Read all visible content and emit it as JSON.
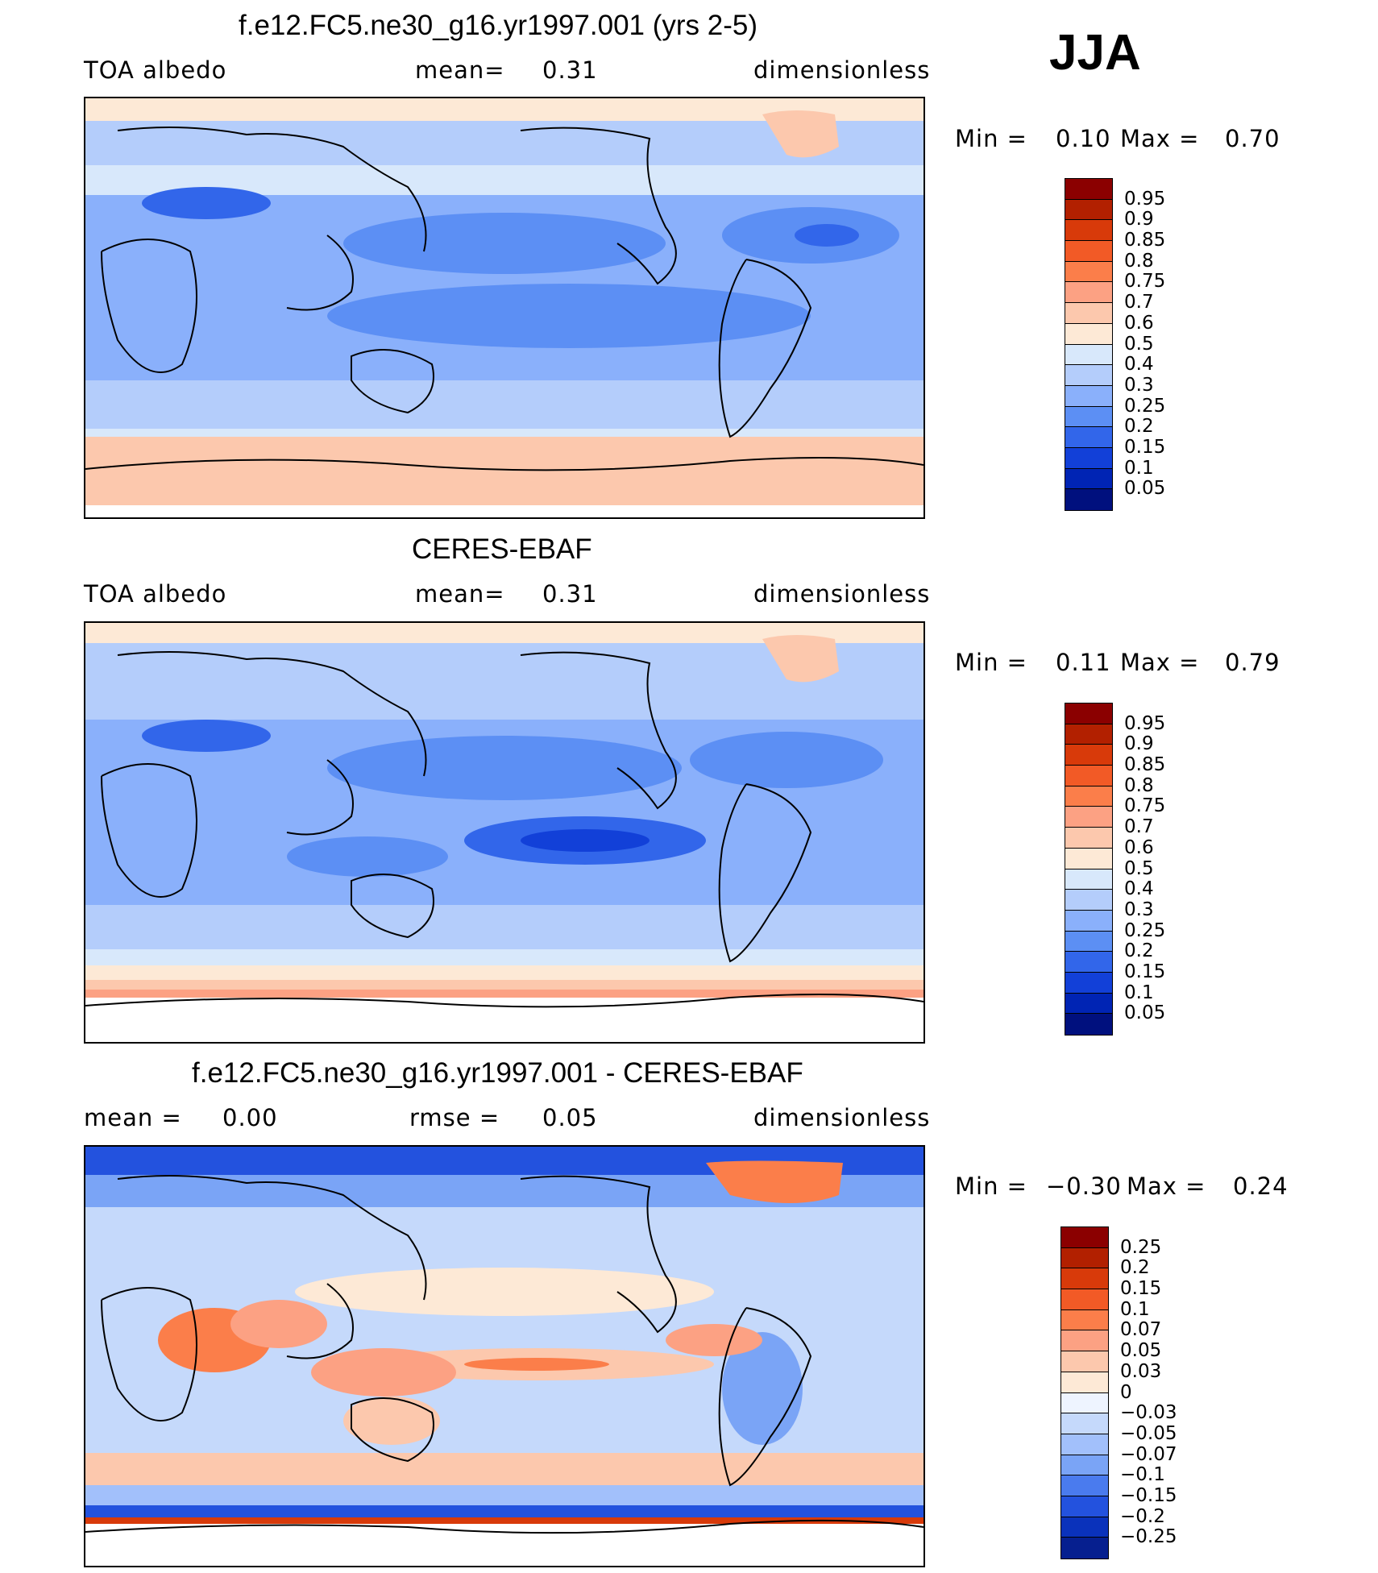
{
  "season": "JJA",
  "panels": [
    {
      "title": "f.e12.FC5.ne30_g16.yr1997.001 (yrs 2-5)",
      "left": "TOA albedo",
      "center_label": "mean=",
      "center_value": "0.31",
      "right": "dimensionless",
      "min_label": "Min =",
      "min_value": "0.10",
      "max_label": "Max =",
      "max_value": "0.70",
      "scale": "abs",
      "colorbar_labels": [
        "0.95",
        "0.9",
        "0.85",
        "0.8",
        "0.75",
        "0.7",
        "0.6",
        "0.5",
        "0.4",
        "0.3",
        "0.25",
        "0.2",
        "0.15",
        "0.1",
        "0.05"
      ]
    },
    {
      "title": "CERES-EBAF",
      "left": "TOA albedo",
      "center_label": "mean=",
      "center_value": "0.31",
      "right": "dimensionless",
      "min_label": "Min =",
      "min_value": "0.11",
      "max_label": "Max =",
      "max_value": "0.79",
      "scale": "abs",
      "colorbar_labels": [
        "0.95",
        "0.9",
        "0.85",
        "0.8",
        "0.75",
        "0.7",
        "0.6",
        "0.5",
        "0.4",
        "0.3",
        "0.25",
        "0.2",
        "0.15",
        "0.1",
        "0.05"
      ]
    },
    {
      "title": "f.e12.FC5.ne30_g16.yr1997.001 - CERES-EBAF",
      "left": "mean =",
      "left_value": "0.00",
      "center_label": "rmse =",
      "center_value": "0.05",
      "right": "dimensionless",
      "min_label": "Min =",
      "min_value": "−0.30",
      "max_label": "Max =",
      "max_value": "0.24",
      "scale": "diff",
      "colorbar_labels": [
        "0.25",
        "0.2",
        "0.15",
        "0.1",
        "0.07",
        "0.05",
        "0.03",
        "0",
        "−0.03",
        "−0.05",
        "−0.07",
        "−0.1",
        "−0.15",
        "−0.2",
        "−0.25"
      ]
    }
  ],
  "palettes": {
    "abs": [
      "#8b0000",
      "#b22000",
      "#d83a0a",
      "#f25a26",
      "#fb7e4a",
      "#fca183",
      "#fcc8ad",
      "#fde9d6",
      "#d8e8fb",
      "#b4cdfb",
      "#8ab0fb",
      "#5c8ff4",
      "#3266ea",
      "#1240d8",
      "#0024b4",
      "#00107e"
    ],
    "diff": [
      "#8b0000",
      "#b22000",
      "#d83a0a",
      "#f25a26",
      "#fb7e4a",
      "#fca183",
      "#fcc8ad",
      "#fde9d6",
      "#eef4ff",
      "#c5d9fb",
      "#a2c0fb",
      "#7aa4f6",
      "#4a7bee",
      "#2352de",
      "#0a32bb",
      "#061f8f"
    ]
  }
}
